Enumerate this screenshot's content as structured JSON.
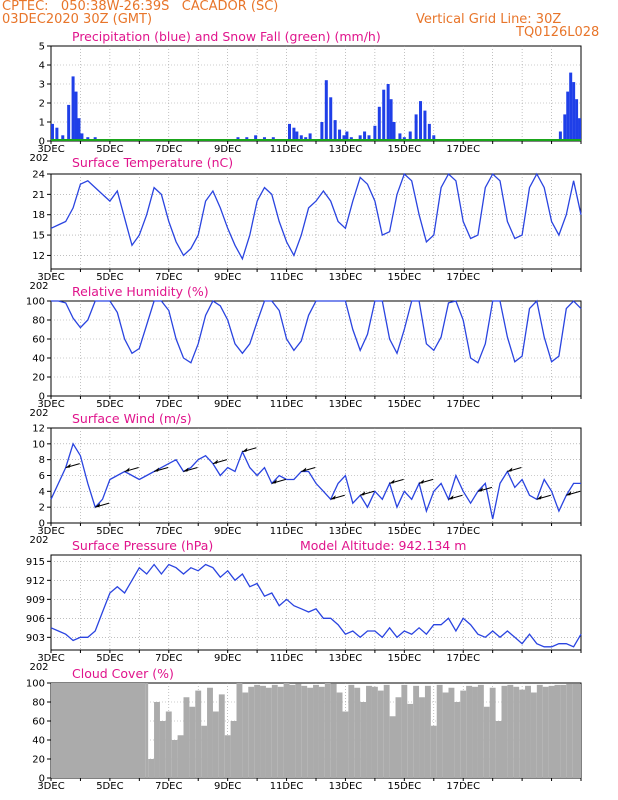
{
  "header": {
    "line1": "CPTEC:   050:38W-26:39S   CACADOR (SC)",
    "line2": "03DEC2020 30Z (GMT)",
    "grid_note": "Vertical Grid Line: 30Z",
    "code": "TQ0126L028"
  },
  "x_labels": [
    "3DEC",
    "5DEC",
    "7DEC",
    "9DEC",
    "11DEC",
    "13DEC",
    "15DEC",
    "17DEC"
  ],
  "year_stub": "202",
  "panels": [
    {
      "id": "precip",
      "title": "Precipitation (blue) and Snow Fall (green) (mm/h)",
      "yticks": [
        "5",
        "4",
        "3",
        "2",
        "1",
        "0"
      ]
    },
    {
      "id": "temp",
      "title": "Surface Temperature (nC)",
      "yticks": [
        "24",
        "21",
        "18",
        "15",
        "12"
      ]
    },
    {
      "id": "rh",
      "title": "Relative Humidity (%)",
      "yticks": [
        "100",
        "80",
        "60",
        "40",
        "20",
        "0"
      ]
    },
    {
      "id": "wind",
      "title": "Surface Wind (m/s)",
      "yticks": [
        "12",
        "10",
        "8",
        "6",
        "4",
        "2",
        "0"
      ]
    },
    {
      "id": "press",
      "title": "Surface Pressure (hPa)",
      "extra": "Model Altitude: 942.134 m",
      "yticks": [
        "915",
        "912",
        "909",
        "906",
        "903"
      ]
    },
    {
      "id": "cloud",
      "title": "Cloud Cover (%)",
      "yticks": [
        "100",
        "80",
        "60",
        "40",
        "20",
        "0"
      ]
    }
  ],
  "chart_data": [
    {
      "type": "bar",
      "title": "Precipitation (blue) and Snow Fall (green) (mm/h)",
      "x_unit": "days since 3DEC 00Z",
      "ylim": [
        0,
        5
      ],
      "series": [
        {
          "name": "Precipitation",
          "color": "#1f3fe8",
          "x": [
            0.05,
            0.2,
            0.4,
            0.6,
            0.75,
            0.85,
            0.95,
            1.05,
            1.25,
            1.5,
            3.2,
            3.4,
            6.2,
            6.35,
            6.5,
            6.65,
            6.8,
            6.95,
            7.1,
            7.25,
            7.4,
            7.55,
            7.75,
            8.1,
            8.25,
            8.35,
            8.5,
            8.65,
            8.8,
            9.2,
            9.35,
            9.5,
            9.65,
            9.8,
            9.95,
            10.05,
            10.2,
            10.5,
            10.65,
            10.8,
            11.0,
            11.15,
            11.3,
            11.45,
            11.55,
            11.65,
            11.85,
            12.0,
            12.2,
            12.4,
            12.55,
            12.7,
            12.85,
            13.0,
            13.3,
            14.3,
            17.3,
            17.45,
            17.55,
            17.65,
            17.75,
            17.85,
            17.95
          ],
          "values": [
            0.9,
            0.7,
            0.3,
            1.9,
            3.4,
            2.6,
            1.2,
            0.4,
            0.2,
            0.2,
            0.1,
            0.1,
            0.1,
            0.2,
            0.1,
            0.2,
            0.1,
            0.3,
            0.1,
            0.2,
            0.1,
            0.2,
            0.1,
            0.9,
            0.7,
            0.5,
            0.3,
            0.2,
            0.4,
            1.0,
            3.2,
            2.3,
            1.1,
            0.6,
            0.3,
            0.5,
            0.2,
            0.3,
            0.5,
            0.3,
            0.8,
            1.8,
            2.7,
            3.0,
            2.2,
            1.0,
            0.4,
            0.2,
            0.5,
            1.4,
            2.1,
            1.6,
            0.9,
            0.3,
            0.1,
            0.1,
            0.5,
            1.4,
            2.6,
            3.6,
            3.1,
            2.2,
            1.2
          ]
        },
        {
          "name": "Snow Fall",
          "color": "#1aa51a",
          "x": [
            0,
            18
          ],
          "values": [
            0.05,
            0.05
          ]
        }
      ]
    },
    {
      "type": "line",
      "title": "Surface Temperature (nC)",
      "ylim": [
        10,
        24
      ],
      "x": [
        0,
        0.25,
        0.5,
        0.75,
        1,
        1.25,
        1.5,
        1.75,
        2,
        2.25,
        2.5,
        2.75,
        3,
        3.25,
        3.5,
        3.75,
        4,
        4.25,
        4.5,
        4.75,
        5,
        5.25,
        5.5,
        5.75,
        6,
        6.25,
        6.5,
        6.75,
        7,
        7.25,
        7.5,
        7.75,
        8,
        8.25,
        8.5,
        8.75,
        9,
        9.25,
        9.5,
        9.75,
        10,
        10.25,
        10.5,
        10.75,
        11,
        11.25,
        11.5,
        11.75,
        12,
        12.25,
        12.5,
        12.75,
        13,
        13.25,
        13.5,
        13.75,
        14,
        14.25,
        14.5,
        14.75,
        15,
        15.25,
        15.5,
        15.75,
        16,
        16.25,
        16.5,
        16.75,
        17,
        17.25,
        17.5,
        17.75,
        18
      ],
      "values": [
        16,
        16.5,
        17,
        19,
        22.5,
        23,
        22,
        21,
        20,
        21.5,
        17.5,
        13.5,
        15,
        18,
        22,
        21,
        17,
        14,
        12,
        13,
        15,
        20,
        21.5,
        19,
        16,
        13.5,
        11.5,
        15,
        20,
        22,
        21,
        17,
        14,
        12,
        15,
        19,
        20,
        21.5,
        20,
        17,
        16,
        20,
        23.5,
        22.5,
        20,
        15,
        15.5,
        21,
        24,
        23,
        18,
        14,
        15,
        22,
        24,
        23,
        17,
        14.5,
        15,
        22,
        24,
        23,
        17,
        14.5,
        15,
        22,
        24,
        22,
        17,
        15,
        18,
        23,
        18
      ]
    },
    {
      "type": "line",
      "title": "Relative Humidity (%)",
      "ylim": [
        0,
        100
      ],
      "x": [
        0,
        0.25,
        0.5,
        0.75,
        1,
        1.25,
        1.5,
        1.75,
        2,
        2.25,
        2.5,
        2.75,
        3,
        3.25,
        3.5,
        3.75,
        4,
        4.25,
        4.5,
        4.75,
        5,
        5.25,
        5.5,
        5.75,
        6,
        6.25,
        6.5,
        6.75,
        7,
        7.25,
        7.5,
        7.75,
        8,
        8.25,
        8.5,
        8.75,
        9,
        9.25,
        9.5,
        9.75,
        10,
        10.25,
        10.5,
        10.75,
        11,
        11.25,
        11.5,
        11.75,
        12,
        12.25,
        12.5,
        12.75,
        13,
        13.25,
        13.5,
        13.75,
        14,
        14.25,
        14.5,
        14.75,
        15,
        15.25,
        15.5,
        15.75,
        16,
        16.25,
        16.5,
        16.75,
        17,
        17.25,
        17.5,
        17.75,
        18
      ],
      "values": [
        100,
        100,
        98,
        82,
        72,
        80,
        100,
        100,
        100,
        88,
        60,
        45,
        50,
        75,
        100,
        100,
        90,
        60,
        40,
        35,
        55,
        85,
        100,
        95,
        80,
        55,
        45,
        55,
        78,
        100,
        100,
        90,
        60,
        48,
        58,
        85,
        100,
        100,
        100,
        100,
        100,
        70,
        48,
        65,
        100,
        100,
        60,
        45,
        70,
        100,
        100,
        55,
        48,
        62,
        98,
        100,
        80,
        40,
        35,
        55,
        100,
        100,
        62,
        36,
        42,
        92,
        100,
        62,
        36,
        42,
        92,
        100,
        92
      ]
    },
    {
      "type": "line",
      "title": "Surface Wind (m/s)",
      "ylim": [
        0,
        12
      ],
      "x": [
        0,
        0.25,
        0.5,
        0.75,
        1,
        1.25,
        1.5,
        1.75,
        2,
        2.25,
        2.5,
        2.75,
        3,
        3.25,
        3.5,
        3.75,
        4,
        4.25,
        4.5,
        4.75,
        5,
        5.25,
        5.5,
        5.75,
        6,
        6.25,
        6.5,
        6.75,
        7,
        7.25,
        7.5,
        7.75,
        8,
        8.25,
        8.5,
        8.75,
        9,
        9.25,
        9.5,
        9.75,
        10,
        10.25,
        10.5,
        10.75,
        11,
        11.25,
        11.5,
        11.75,
        12,
        12.25,
        12.5,
        12.75,
        13,
        13.25,
        13.5,
        13.75,
        14,
        14.25,
        14.5,
        14.75,
        15,
        15.25,
        15.5,
        15.75,
        16,
        16.25,
        16.5,
        16.75,
        17,
        17.25,
        17.5,
        17.75,
        18
      ],
      "values": [
        3,
        5,
        7,
        10,
        8.5,
        5,
        2,
        3,
        5.5,
        6,
        6.5,
        6,
        5.5,
        6,
        6.5,
        7,
        7.5,
        8,
        6.5,
        7,
        8,
        8.5,
        7.5,
        6,
        7,
        6.5,
        9,
        7,
        6,
        7,
        5,
        6,
        5.5,
        5.5,
        6.5,
        6.5,
        5,
        4,
        3,
        5,
        6,
        2.5,
        3.5,
        2,
        4,
        3,
        5,
        2,
        4,
        3,
        5,
        1.5,
        4,
        5,
        3,
        6,
        4,
        2.5,
        4,
        5,
        0.5,
        5,
        6.5,
        4.5,
        5.5,
        3.5,
        3,
        5.5,
        4,
        1.5,
        3.5,
        5,
        5
      ]
    },
    {
      "type": "line",
      "title": "Surface Pressure (hPa)",
      "ylim": [
        901,
        916
      ],
      "x": [
        0,
        0.25,
        0.5,
        0.75,
        1,
        1.25,
        1.5,
        1.75,
        2,
        2.25,
        2.5,
        2.75,
        3,
        3.25,
        3.5,
        3.75,
        4,
        4.25,
        4.5,
        4.75,
        5,
        5.25,
        5.5,
        5.75,
        6,
        6.25,
        6.5,
        6.75,
        7,
        7.25,
        7.5,
        7.75,
        8,
        8.25,
        8.5,
        8.75,
        9,
        9.25,
        9.5,
        9.75,
        10,
        10.25,
        10.5,
        10.75,
        11,
        11.25,
        11.5,
        11.75,
        12,
        12.25,
        12.5,
        12.75,
        13,
        13.25,
        13.5,
        13.75,
        14,
        14.25,
        14.5,
        14.75,
        15,
        15.25,
        15.5,
        15.75,
        16,
        16.25,
        16.5,
        16.75,
        17,
        17.25,
        17.5,
        17.75,
        18
      ],
      "values": [
        904.5,
        904,
        903.5,
        902.5,
        903,
        903,
        904,
        907,
        910,
        911,
        910,
        912,
        914,
        913,
        914.5,
        913,
        914.5,
        914,
        913,
        914,
        913.5,
        914.5,
        914,
        912.5,
        913.5,
        912,
        913,
        911,
        911.5,
        909.5,
        910,
        908,
        909,
        908,
        907.5,
        907,
        907.5,
        906,
        906,
        905,
        903.5,
        904,
        903,
        904,
        904,
        903,
        904.5,
        903,
        904,
        903.5,
        904.5,
        903.5,
        905,
        905,
        906,
        904,
        906,
        905,
        903.5,
        903,
        904,
        903,
        904,
        903,
        902,
        903.5,
        902,
        901.5,
        901.5,
        902,
        902,
        901.5,
        903.5
      ]
    },
    {
      "type": "area",
      "title": "Cloud Cover (%)",
      "ylim": [
        0,
        100
      ],
      "x": [
        0,
        3.2,
        3.3,
        3.5,
        3.7,
        3.9,
        4.1,
        4.3,
        4.5,
        4.7,
        4.9,
        5.1,
        5.3,
        5.5,
        5.7,
        5.9,
        6.1,
        6.3,
        6.5,
        6.7,
        6.9,
        7.1,
        7.3,
        7.5,
        7.7,
        7.9,
        8.1,
        8.3,
        8.5,
        8.7,
        8.9,
        9.1,
        9.3,
        9.5,
        9.7,
        9.9,
        10.1,
        10.3,
        10.5,
        10.7,
        10.9,
        11.1,
        11.3,
        11.5,
        11.7,
        11.9,
        12.1,
        12.3,
        12.5,
        12.7,
        12.9,
        13.1,
        13.3,
        13.5,
        13.7,
        13.9,
        14.1,
        14.3,
        14.5,
        14.7,
        14.9,
        15.1,
        15.3,
        15.5,
        15.7,
        15.9,
        16.1,
        16.3,
        16.5,
        16.7,
        16.9,
        17.1,
        17.3,
        17.5,
        17.7,
        18
      ],
      "values": [
        100,
        100,
        20,
        80,
        60,
        70,
        40,
        45,
        85,
        75,
        92,
        55,
        95,
        70,
        88,
        45,
        60,
        100,
        90,
        96,
        98,
        97,
        95,
        98,
        96,
        100,
        98,
        99,
        97,
        95,
        98,
        96,
        100,
        99,
        90,
        70,
        98,
        95,
        80,
        97,
        96,
        92,
        98,
        65,
        85,
        98,
        78,
        97,
        85,
        97,
        55,
        98,
        90,
        95,
        80,
        92,
        97,
        96,
        98,
        75,
        95,
        60,
        97,
        98,
        96,
        93,
        97,
        90,
        98,
        96,
        97,
        98,
        98,
        99,
        99,
        100
      ]
    }
  ]
}
